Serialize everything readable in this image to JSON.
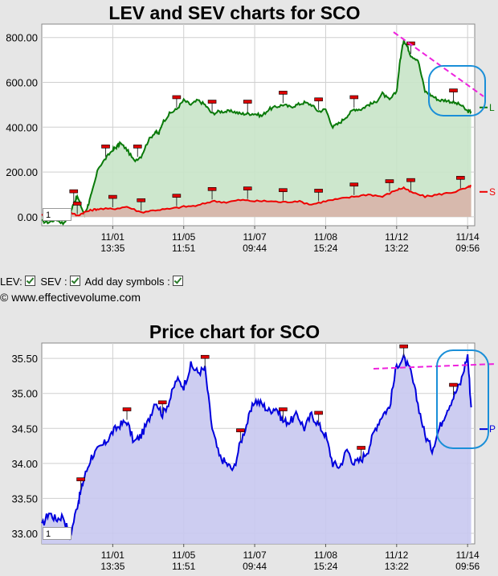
{
  "chart_data": [
    {
      "type": "area",
      "title": "LEV and SEV charts for SCO",
      "xlabel": "",
      "ylabel": "",
      "ylim": [
        -40,
        860
      ],
      "yticks": [
        0,
        200,
        400,
        600,
        800
      ],
      "ytick_labels": [
        "0.00",
        "200.00",
        "400.00",
        "600.00",
        "800.00"
      ],
      "xticks": [
        {
          "x": 10,
          "label": [
            "11/01",
            "13:35"
          ]
        },
        {
          "x": 20,
          "label": [
            "11/05",
            "11:51"
          ]
        },
        {
          "x": 30,
          "label": [
            "11/07",
            "09:44"
          ]
        },
        {
          "x": 40,
          "label": [
            "11/08",
            "15:24"
          ]
        },
        {
          "x": 50,
          "label": [
            "11/12",
            "13:22"
          ]
        },
        {
          "x": 60,
          "label": [
            "11/14",
            "09:56"
          ]
        }
      ],
      "xlim": [
        0,
        61
      ],
      "grid": true,
      "legend": {
        "placement": "right",
        "entries": [
          "L",
          "S"
        ]
      },
      "page_box": "1",
      "series": [
        {
          "name": "L",
          "color": "#0a7a0a",
          "fill": "#c8e4c8",
          "x": [
            0,
            1,
            2,
            3,
            4,
            4.5,
            5,
            6,
            6.5,
            7,
            8,
            9,
            10,
            10.5,
            11,
            12,
            13,
            14,
            15,
            16,
            16.5,
            17,
            18,
            19,
            20,
            21,
            22,
            23,
            24,
            25,
            26,
            27,
            28,
            29,
            30,
            31,
            32,
            33,
            34,
            35,
            36,
            37,
            38,
            39,
            40,
            41,
            42,
            43,
            44,
            45,
            46,
            47,
            48,
            49,
            50,
            50.5,
            51,
            51.5,
            52,
            53,
            54,
            55,
            56,
            57,
            58,
            59,
            60,
            60.5
          ],
          "values": [
            -20,
            -25,
            -10,
            -30,
            15,
            60,
            90,
            10,
            50,
            100,
            220,
            260,
            300,
            310,
            330,
            300,
            250,
            270,
            340,
            380,
            370,
            420,
            460,
            480,
            520,
            500,
            520,
            500,
            460,
            470,
            470,
            470,
            460,
            460,
            460,
            450,
            480,
            490,
            500,
            490,
            500,
            510,
            500,
            470,
            480,
            400,
            420,
            450,
            480,
            480,
            500,
            510,
            550,
            520,
            560,
            700,
            790,
            760,
            720,
            700,
            560,
            540,
            520,
            520,
            510,
            500,
            470,
            470
          ]
        },
        {
          "name": "S",
          "color": "#ee0000",
          "fill": "#d8b4aa",
          "x": [
            0,
            2,
            4,
            5,
            6,
            7,
            8,
            10,
            12,
            14,
            16,
            18,
            20,
            22,
            24,
            26,
            28,
            30,
            32,
            34,
            36,
            38,
            40,
            42,
            44,
            46,
            48,
            50,
            51,
            52,
            54,
            56,
            58,
            60,
            60.5
          ],
          "values": [
            10,
            15,
            20,
            5,
            20,
            30,
            35,
            35,
            45,
            20,
            30,
            35,
            45,
            50,
            70,
            65,
            75,
            70,
            70,
            65,
            70,
            55,
            70,
            80,
            90,
            100,
            90,
            120,
            130,
            110,
            90,
            100,
            110,
            130,
            140
          ]
        }
      ]
    },
    {
      "type": "area",
      "title": "Price chart for SCO",
      "xlabel": "",
      "ylabel": "",
      "ylim": [
        32.85,
        35.72
      ],
      "yticks": [
        33.0,
        33.5,
        34.0,
        34.5,
        35.0,
        35.5
      ],
      "ytick_labels": [
        "33.00",
        "33.50",
        "34.00",
        "34.50",
        "35.00",
        "35.50"
      ],
      "xticks": [
        {
          "x": 10,
          "label": [
            "11/01",
            "13:35"
          ]
        },
        {
          "x": 20,
          "label": [
            "11/05",
            "11:51"
          ]
        },
        {
          "x": 30,
          "label": [
            "11/07",
            "09:44"
          ]
        },
        {
          "x": 40,
          "label": [
            "11/08",
            "15:24"
          ]
        },
        {
          "x": 50,
          "label": [
            "11/12",
            "13:22"
          ]
        },
        {
          "x": 60,
          "label": [
            "11/14",
            "09:56"
          ]
        }
      ],
      "xlim": [
        0,
        61
      ],
      "grid": true,
      "legend": {
        "placement": "right",
        "entries": [
          "P"
        ]
      },
      "page_box": "1",
      "series": [
        {
          "name": "P",
          "color": "#0000dd",
          "fill": "#c8c8f0",
          "x": [
            0,
            1,
            2,
            3,
            4,
            5,
            5.5,
            6,
            7,
            8,
            9,
            10,
            11,
            12,
            13,
            14,
            15,
            16,
            17,
            18,
            19,
            20,
            21,
            22,
            23,
            24,
            25,
            26,
            27,
            28,
            29,
            30,
            31,
            32,
            33,
            34,
            35,
            36,
            37,
            38,
            39,
            40,
            41,
            42,
            43,
            44,
            45,
            46,
            47,
            48,
            49,
            50,
            51,
            52,
            53,
            54,
            55,
            56,
            57,
            58,
            59,
            60,
            60.5
          ],
          "values": [
            33.1,
            33.3,
            33.2,
            33.25,
            32.95,
            33.4,
            33.6,
            33.8,
            34.1,
            34.2,
            34.3,
            34.45,
            34.55,
            34.6,
            34.3,
            34.4,
            34.6,
            34.9,
            34.7,
            34.9,
            35.2,
            35.1,
            35.4,
            35.3,
            35.35,
            34.5,
            34.1,
            34.0,
            33.9,
            34.3,
            34.6,
            34.9,
            34.85,
            34.75,
            34.8,
            34.6,
            34.6,
            34.7,
            34.5,
            34.7,
            34.55,
            34.4,
            34.0,
            33.95,
            34.2,
            34.0,
            34.05,
            34.2,
            34.5,
            34.7,
            34.8,
            35.4,
            35.5,
            35.3,
            34.85,
            34.4,
            34.2,
            34.5,
            34.75,
            34.95,
            35.15,
            35.55,
            34.8
          ]
        }
      ]
    }
  ],
  "options": {
    "lev_label": "LEV:",
    "sev_label": "SEV :",
    "day_symbols_label": "Add day symbols :"
  },
  "copyright": "© www.effectivevolume.com"
}
